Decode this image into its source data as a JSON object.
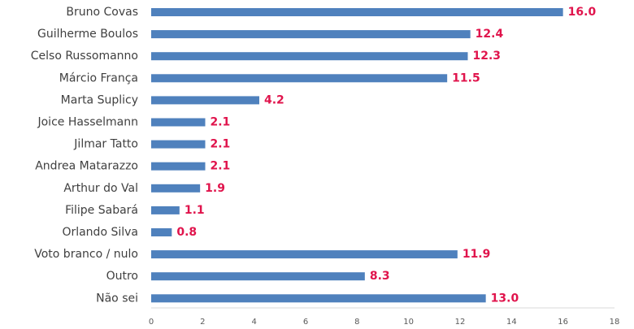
{
  "chart_data": {
    "type": "bar",
    "orientation": "horizontal",
    "categories": [
      "Bruno Covas",
      "Guilherme Boulos",
      "Celso Russomanno",
      "Márcio França",
      "Marta Suplicy",
      "Joice Hasselmann",
      "Jilmar Tatto",
      "Andrea Matarazzo",
      "Arthur do Val",
      "Filipe Sabará",
      "Orlando Silva",
      "Voto branco / nulo",
      "Outro",
      "Não sei"
    ],
    "values": [
      16.0,
      12.4,
      12.3,
      11.5,
      4.2,
      2.1,
      2.1,
      2.1,
      1.9,
      1.1,
      0.8,
      11.9,
      8.3,
      13.0
    ],
    "value_labels": [
      "16.0",
      "12.4",
      "12.3",
      "11.5",
      "4.2",
      "2.1",
      "2.1",
      "2.1",
      "1.9",
      "1.1",
      "0.8",
      "11.9",
      "8.3",
      "13.0"
    ],
    "xlim": [
      0,
      18
    ],
    "x_ticks": [
      0,
      2,
      4,
      6,
      8,
      10,
      12,
      14,
      16,
      18
    ],
    "title": "",
    "xlabel": "",
    "ylabel": "",
    "grid": false,
    "legend": "none",
    "colors": {
      "bar": "#4f81bd",
      "value_label": "#e0144c",
      "category_label": "#404040",
      "tick_label": "#595959",
      "axis": "#d9d9d9"
    }
  }
}
